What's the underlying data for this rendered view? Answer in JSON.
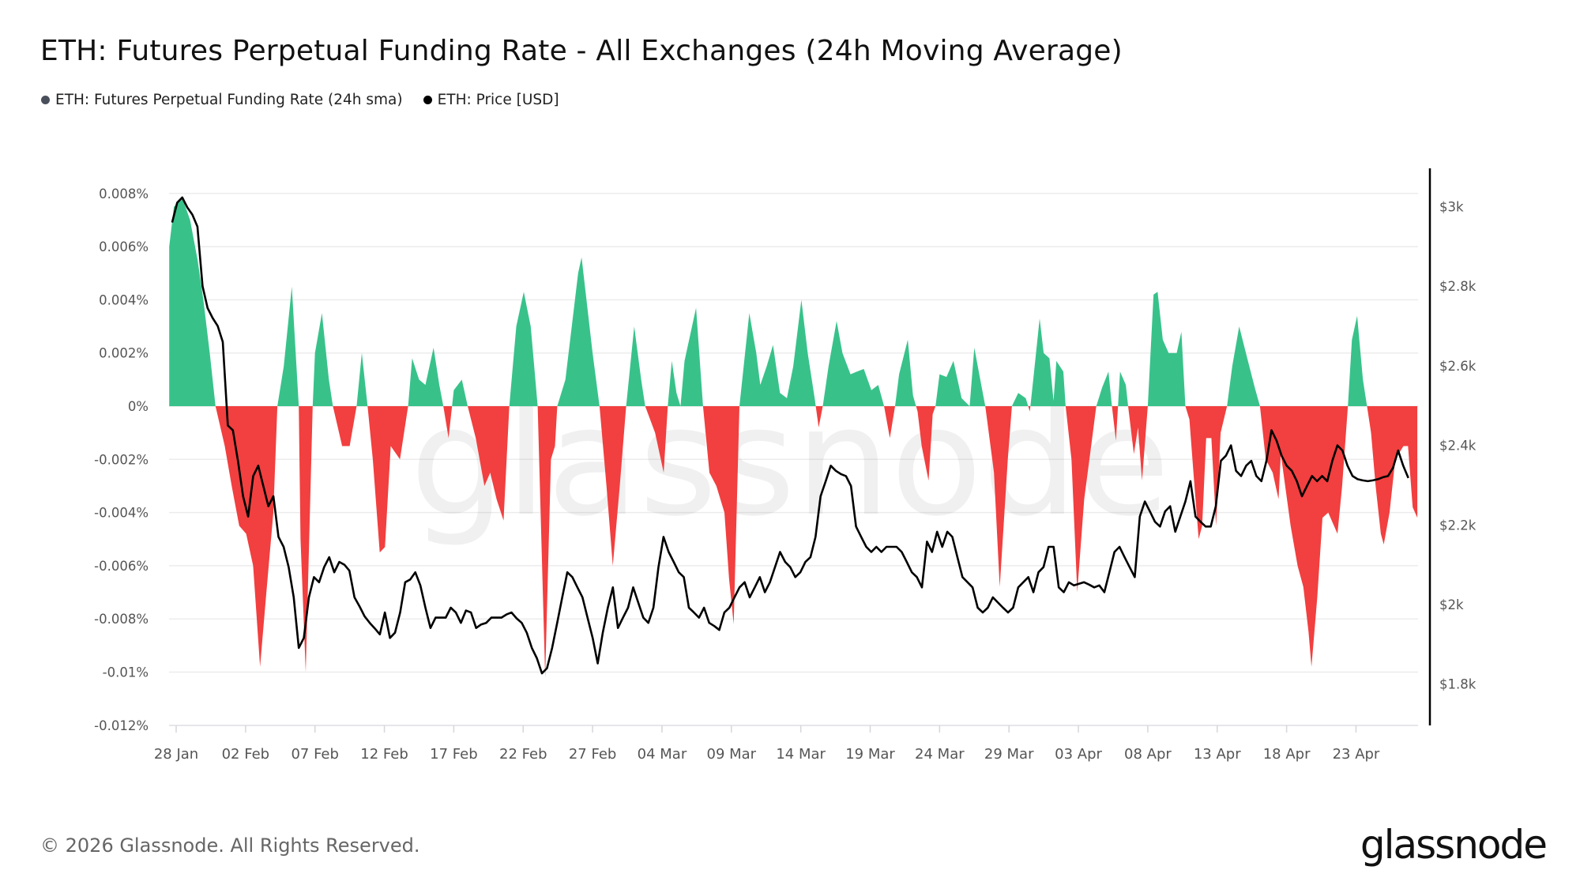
{
  "title": "ETH: Futures Perpetual Funding Rate - All Exchanges (24h Moving Average)",
  "legend": [
    {
      "label": "ETH: Futures Perpetual Funding Rate (24h sma)",
      "color": "#4a4f5c"
    },
    {
      "label": "ETH: Price [USD]",
      "color": "#000000"
    }
  ],
  "footer": {
    "copyright": "© 2026 Glassnode. All Rights Reserved.",
    "logo": "glassnode",
    "watermark": "glassnode"
  },
  "chart_data": {
    "type": "area+line",
    "title": "ETH: Futures Perpetual Funding Rate - All Exchanges (24h Moving Average)",
    "grid": "horizontal",
    "legend_position": "top-left",
    "colors": {
      "positive": "#38c28a",
      "negative": "#f23f3f",
      "price": "#000000",
      "grid": "#ececec"
    },
    "x_ticks": [
      "28 Jan",
      "02 Feb",
      "07 Feb",
      "12 Feb",
      "17 Feb",
      "22 Feb",
      "27 Feb",
      "04 Mar",
      "09 Mar",
      "14 Mar",
      "19 Mar",
      "24 Mar",
      "29 Mar",
      "03 Apr",
      "08 Apr",
      "13 Apr",
      "18 Apr",
      "23 Apr"
    ],
    "left_axis": {
      "ticks": [
        "0.008%",
        "0.006%",
        "0.004%",
        "0.002%",
        "0%",
        "-0.002%",
        "-0.004%",
        "-0.006%",
        "-0.008%",
        "-0.01%",
        "-0.012%"
      ],
      "tick_values": [
        0.008,
        0.006,
        0.004,
        0.002,
        0,
        -0.002,
        -0.004,
        -0.006,
        -0.008,
        -0.01,
        -0.012
      ],
      "range": [
        -0.012,
        0.008
      ]
    },
    "right_axis": {
      "ticks": [
        "$3k",
        "$2.8k",
        "$2.6k",
        "$2.4k",
        "$2.2k",
        "$2k",
        "$1.8k"
      ],
      "tick_values": [
        3000,
        2800,
        2600,
        2400,
        2200,
        2000,
        1800
      ],
      "range": [
        1700,
        3100
      ]
    },
    "funding_series": {
      "name": "ETH: Futures Perpetual Funding Rate (24h sma)",
      "unit": "%",
      "points": [
        [
          "01-27 12",
          0.006
        ],
        [
          "01-27 20",
          0.0075
        ],
        [
          "01-28 11",
          0.0078
        ],
        [
          "01-29 00",
          0.007
        ],
        [
          "01-29 13",
          0.0055
        ],
        [
          "01-29 23",
          0.004
        ],
        [
          "01-30 10",
          0.002
        ],
        [
          "01-30 20",
          0
        ],
        [
          "01-31 12",
          -0.0015
        ],
        [
          "02-01 00",
          -0.003
        ],
        [
          "02-01 13",
          -0.0045
        ],
        [
          "02-02 01",
          -0.0048
        ],
        [
          "02-02 13",
          -0.006
        ],
        [
          "02-03 01",
          -0.0098
        ],
        [
          "02-03 12",
          -0.007
        ],
        [
          "02-04 00",
          -0.004
        ],
        [
          "02-04 07",
          0
        ],
        [
          "02-04 18",
          0.0015
        ],
        [
          "02-05 08",
          0.0045
        ],
        [
          "02-05 20",
          0
        ],
        [
          "02-05 23",
          -0.005
        ],
        [
          "02-06 08",
          -0.01
        ],
        [
          "02-06 20",
          0
        ],
        [
          "02-07 00",
          0.002
        ],
        [
          "02-07 12",
          0.0035
        ],
        [
          "02-08 00",
          0.001
        ],
        [
          "02-08 07",
          0
        ],
        [
          "02-08 23",
          -0.0015
        ],
        [
          "02-09 12",
          -0.0015
        ],
        [
          "02-09 20",
          -0.0005
        ],
        [
          "02-10 00",
          0
        ],
        [
          "02-10 09",
          0.002
        ],
        [
          "02-10 19",
          0
        ],
        [
          "02-11 04",
          -0.002
        ],
        [
          "02-11 16",
          -0.0055
        ],
        [
          "02-12 01",
          -0.0053
        ],
        [
          "02-12 11",
          -0.0015
        ],
        [
          "02-13 03",
          -0.002
        ],
        [
          "02-13 17",
          0
        ],
        [
          "02-14 00",
          0.0018
        ],
        [
          "02-14 12",
          0.001
        ],
        [
          "02-14 23",
          0.0008
        ],
        [
          "02-15 13",
          0.0022
        ],
        [
          "02-15 23",
          0.0008
        ],
        [
          "02-16 06",
          0
        ],
        [
          "02-16 15",
          -0.0012
        ],
        [
          "02-17 00",
          0.0006
        ],
        [
          "02-17 14",
          0.001
        ],
        [
          "02-18 00",
          0
        ],
        [
          "02-18 14",
          -0.0012
        ],
        [
          "02-19 05",
          -0.003
        ],
        [
          "02-19 15",
          -0.0025
        ],
        [
          "02-20 02",
          -0.0035
        ],
        [
          "02-20 14",
          -0.0043
        ],
        [
          "02-21 00",
          0
        ],
        [
          "02-21 12",
          0.003
        ],
        [
          "02-22 01",
          0.0043
        ],
        [
          "02-22 13",
          0.003
        ],
        [
          "02-23 01",
          0
        ],
        [
          "02-23 14",
          -0.0102
        ],
        [
          "02-24 00",
          -0.002
        ],
        [
          "02-24 07",
          -0.0015
        ],
        [
          "02-24 11",
          0
        ],
        [
          "02-25 01",
          0.001
        ],
        [
          "02-25 23",
          0.005
        ],
        [
          "02-26 05",
          0.0056
        ],
        [
          "02-27 00",
          0.002
        ],
        [
          "02-27 12",
          0
        ],
        [
          "02-28 00",
          -0.003
        ],
        [
          "02-28 11",
          -0.006
        ],
        [
          "02-28 23",
          -0.003
        ],
        [
          "03-01 10",
          0
        ],
        [
          "03-02 00",
          0.003
        ],
        [
          "03-02 12",
          0.001
        ],
        [
          "03-02 19",
          0
        ],
        [
          "03-03 12",
          -0.001
        ],
        [
          "03-04 03",
          -0.0025
        ],
        [
          "03-04 10",
          0
        ],
        [
          "03-04 17",
          0.0017
        ],
        [
          "03-05 01",
          0.0005
        ],
        [
          "03-05 08",
          0
        ],
        [
          "03-05 15",
          0.0017
        ],
        [
          "03-06 11",
          0.0037
        ],
        [
          "03-06 23",
          0
        ],
        [
          "03-07 10",
          -0.0025
        ],
        [
          "03-07 22",
          -0.003
        ],
        [
          "03-08 12",
          -0.004
        ],
        [
          "03-08 20",
          -0.0065
        ],
        [
          "03-09 04",
          -0.0082
        ],
        [
          "03-09 14",
          0
        ],
        [
          "03-10 07",
          0.0035
        ],
        [
          "03-10 19",
          0.002
        ],
        [
          "03-11 02",
          0.0008
        ],
        [
          "03-11 13",
          0.0015
        ],
        [
          "03-12 00",
          0.0023
        ],
        [
          "03-12 12",
          0.0005
        ],
        [
          "03-13 00",
          0.0003
        ],
        [
          "03-13 11",
          0.0015
        ],
        [
          "03-14 01",
          0.004
        ],
        [
          "03-14 12",
          0.002
        ],
        [
          "03-15 00",
          0.0003
        ],
        [
          "03-15 07",
          -0.0008
        ],
        [
          "03-15 14",
          0
        ],
        [
          "03-16 00",
          0.0015
        ],
        [
          "03-16 14",
          0.0032
        ],
        [
          "03-17 00",
          0.002
        ],
        [
          "03-17 14",
          0.0012
        ],
        [
          "03-18 01",
          0.0013
        ],
        [
          "03-18 13",
          0.0014
        ],
        [
          "03-19 02",
          0.0006
        ],
        [
          "03-19 14",
          0.0008
        ],
        [
          "03-20 00",
          0
        ],
        [
          "03-20 10",
          -0.0012
        ],
        [
          "03-20 19",
          0
        ],
        [
          "03-21 02",
          0.0012
        ],
        [
          "03-21 17",
          0.0025
        ],
        [
          "03-22 02",
          0.0004
        ],
        [
          "03-22 10",
          -0.0002
        ],
        [
          "03-22 17",
          -0.0015
        ],
        [
          "03-23 05",
          -0.0028
        ],
        [
          "03-23 12",
          -0.0003
        ],
        [
          "03-23 17",
          0
        ],
        [
          "03-24 00",
          0.0012
        ],
        [
          "03-24 12",
          0.0011
        ],
        [
          "03-25 00",
          0.0017
        ],
        [
          "03-25 14",
          0.0003
        ],
        [
          "03-26 04",
          0
        ],
        [
          "03-26 12",
          0.0022
        ],
        [
          "03-27 00",
          0.0008
        ],
        [
          "03-27 07",
          0
        ],
        [
          "03-27 22",
          -0.0025
        ],
        [
          "03-28 08",
          -0.0068
        ],
        [
          "03-28 22",
          -0.002
        ],
        [
          "03-29 05",
          0
        ],
        [
          "03-29 16",
          0.0005
        ],
        [
          "03-30 05",
          0.0003
        ],
        [
          "03-30 12",
          -0.0002
        ],
        [
          "03-30 18",
          0.001
        ],
        [
          "03-31 05",
          0.0033
        ],
        [
          "03-31 12",
          0.002
        ],
        [
          "03-31 22",
          0.0018
        ],
        [
          "04-01 05",
          0.0002
        ],
        [
          "04-01 10",
          0.0017
        ],
        [
          "04-01 22",
          0.0013
        ],
        [
          "04-02 02",
          0
        ],
        [
          "04-02 12",
          -0.002
        ],
        [
          "04-02 22",
          -0.007
        ],
        [
          "04-03 10",
          -0.0035
        ],
        [
          "04-03 22",
          -0.0015
        ],
        [
          "04-04 07",
          0
        ],
        [
          "04-04 17",
          0.0007
        ],
        [
          "04-05 04",
          0.0013
        ],
        [
          "04-05 10",
          0
        ],
        [
          "04-05 17",
          -0.0013
        ],
        [
          "04-06 00",
          0.0013
        ],
        [
          "04-06 10",
          0.0008
        ],
        [
          "04-06 14",
          0
        ],
        [
          "04-07 00",
          -0.0018
        ],
        [
          "04-07 07",
          -0.0008
        ],
        [
          "04-07 14",
          -0.0028
        ],
        [
          "04-08 00",
          0
        ],
        [
          "04-08 10",
          0.0042
        ],
        [
          "04-08 17",
          0.0043
        ],
        [
          "04-09 02",
          0.0025
        ],
        [
          "04-09 12",
          0.002
        ],
        [
          "04-10 02",
          0.002
        ],
        [
          "04-10 10",
          0.0028
        ],
        [
          "04-10 17",
          0
        ],
        [
          "04-11 00",
          -0.0005
        ],
        [
          "04-11 07",
          -0.0025
        ],
        [
          "04-11 16",
          -0.005
        ],
        [
          "04-11 22",
          -0.0045
        ],
        [
          "04-12 05",
          -0.0012
        ],
        [
          "04-12 14",
          -0.0012
        ],
        [
          "04-12 22",
          -0.0045
        ],
        [
          "04-13 06",
          -0.001
        ],
        [
          "04-13 17",
          0
        ],
        [
          "04-14 02",
          0.0015
        ],
        [
          "04-14 14",
          0.003
        ],
        [
          "04-15 04",
          0.0018
        ],
        [
          "04-15 17",
          0.0007
        ],
        [
          "04-16 02",
          0
        ],
        [
          "04-16 12",
          -0.002
        ],
        [
          "04-17 00",
          -0.0025
        ],
        [
          "04-17 10",
          -0.0035
        ],
        [
          "04-17 14",
          -0.0018
        ],
        [
          "04-18 07",
          -0.0045
        ],
        [
          "04-18 19",
          -0.006
        ],
        [
          "04-19 05",
          -0.0068
        ],
        [
          "04-19 14",
          -0.0085
        ],
        [
          "04-19 19",
          -0.0098
        ],
        [
          "04-20 05",
          -0.0072
        ],
        [
          "04-20 14",
          -0.0042
        ],
        [
          "04-21 00",
          -0.004
        ],
        [
          "04-21 10",
          -0.0045
        ],
        [
          "04-21 16",
          -0.0048
        ],
        [
          "04-22 00",
          -0.003
        ],
        [
          "04-22 10",
          0
        ],
        [
          "04-22 17",
          0.0025
        ],
        [
          "04-23 02",
          0.0034
        ],
        [
          "04-23 12",
          0.001
        ],
        [
          "04-23 19",
          0
        ],
        [
          "04-24 02",
          -0.001
        ],
        [
          "04-24 10",
          -0.003
        ],
        [
          "04-24 19",
          -0.0048
        ],
        [
          "04-25 00",
          -0.0052
        ],
        [
          "04-25 10",
          -0.004
        ],
        [
          "04-25 20",
          -0.002
        ],
        [
          "04-26 10",
          -0.0015
        ],
        [
          "04-26 18",
          -0.0015
        ],
        [
          "04-27 02",
          -0.0038
        ],
        [
          "04-27 10",
          -0.0042
        ]
      ]
    },
    "price_series": {
      "name": "ETH: Price [USD]",
      "start": "01-27 17:00",
      "step_hours": 8.76,
      "values": [
        2960,
        3010,
        3023,
        2998,
        2980,
        2950,
        2800,
        2745,
        2720,
        2700,
        2660,
        2450,
        2438,
        2361,
        2272,
        2221,
        2323,
        2349,
        2298,
        2247,
        2272,
        2170,
        2145,
        2094,
        2018,
        1891,
        1916,
        2018,
        2069,
        2056,
        2094,
        2119,
        2081,
        2107,
        2100,
        2085,
        2018,
        1995,
        1970,
        1954,
        1940,
        1925,
        1980,
        1916,
        1929,
        1980,
        2056,
        2063,
        2081,
        2048,
        1992,
        1941,
        1967,
        1967,
        1967,
        1992,
        1980,
        1954,
        1985,
        1980,
        1941,
        1950,
        1954,
        1967,
        1967,
        1967,
        1975,
        1980,
        1965,
        1954,
        1929,
        1891,
        1865,
        1827,
        1840,
        1891,
        1954,
        2018,
        2081,
        2069,
        2043,
        2018,
        1967,
        1916,
        1852,
        1929,
        1992,
        2043,
        1941,
        1967,
        1992,
        2043,
        2005,
        1967,
        1954,
        1992,
        2094,
        2170,
        2132,
        2107,
        2081,
        2069,
        1992,
        1980,
        1967,
        1992,
        1954,
        1946,
        1936,
        1980,
        1992,
        2018,
        2043,
        2056,
        2018,
        2043,
        2069,
        2031,
        2056,
        2094,
        2132,
        2107,
        2094,
        2069,
        2081,
        2107,
        2119,
        2170,
        2272,
        2310,
        2349,
        2336,
        2328,
        2323,
        2298,
        2196,
        2170,
        2145,
        2132,
        2145,
        2132,
        2145,
        2145,
        2145,
        2132,
        2107,
        2081,
        2069,
        2043,
        2158,
        2132,
        2183,
        2145,
        2183,
        2170,
        2119,
        2069,
        2056,
        2043,
        1992,
        1980,
        1992,
        2018,
        2005,
        1992,
        1980,
        1992,
        2043,
        2056,
        2069,
        2031,
        2081,
        2094,
        2145,
        2145,
        2043,
        2031,
        2056,
        2048,
        2052,
        2056,
        2050,
        2043,
        2048,
        2031,
        2081,
        2132,
        2145,
        2119,
        2094,
        2069,
        2221,
        2259,
        2234,
        2208,
        2196,
        2234,
        2247,
        2183,
        2221,
        2259,
        2310,
        2221,
        2208,
        2196,
        2196,
        2247,
        2361,
        2374,
        2400,
        2336,
        2323,
        2349,
        2361,
        2323,
        2310,
        2361,
        2438,
        2412,
        2374,
        2349,
        2336,
        2310,
        2272,
        2298,
        2323,
        2310,
        2323,
        2310,
        2361,
        2400,
        2387,
        2349,
        2323,
        2315,
        2312,
        2310,
        2312,
        2315,
        2320,
        2323,
        2344,
        2387,
        2349,
        2318
      ]
    }
  }
}
